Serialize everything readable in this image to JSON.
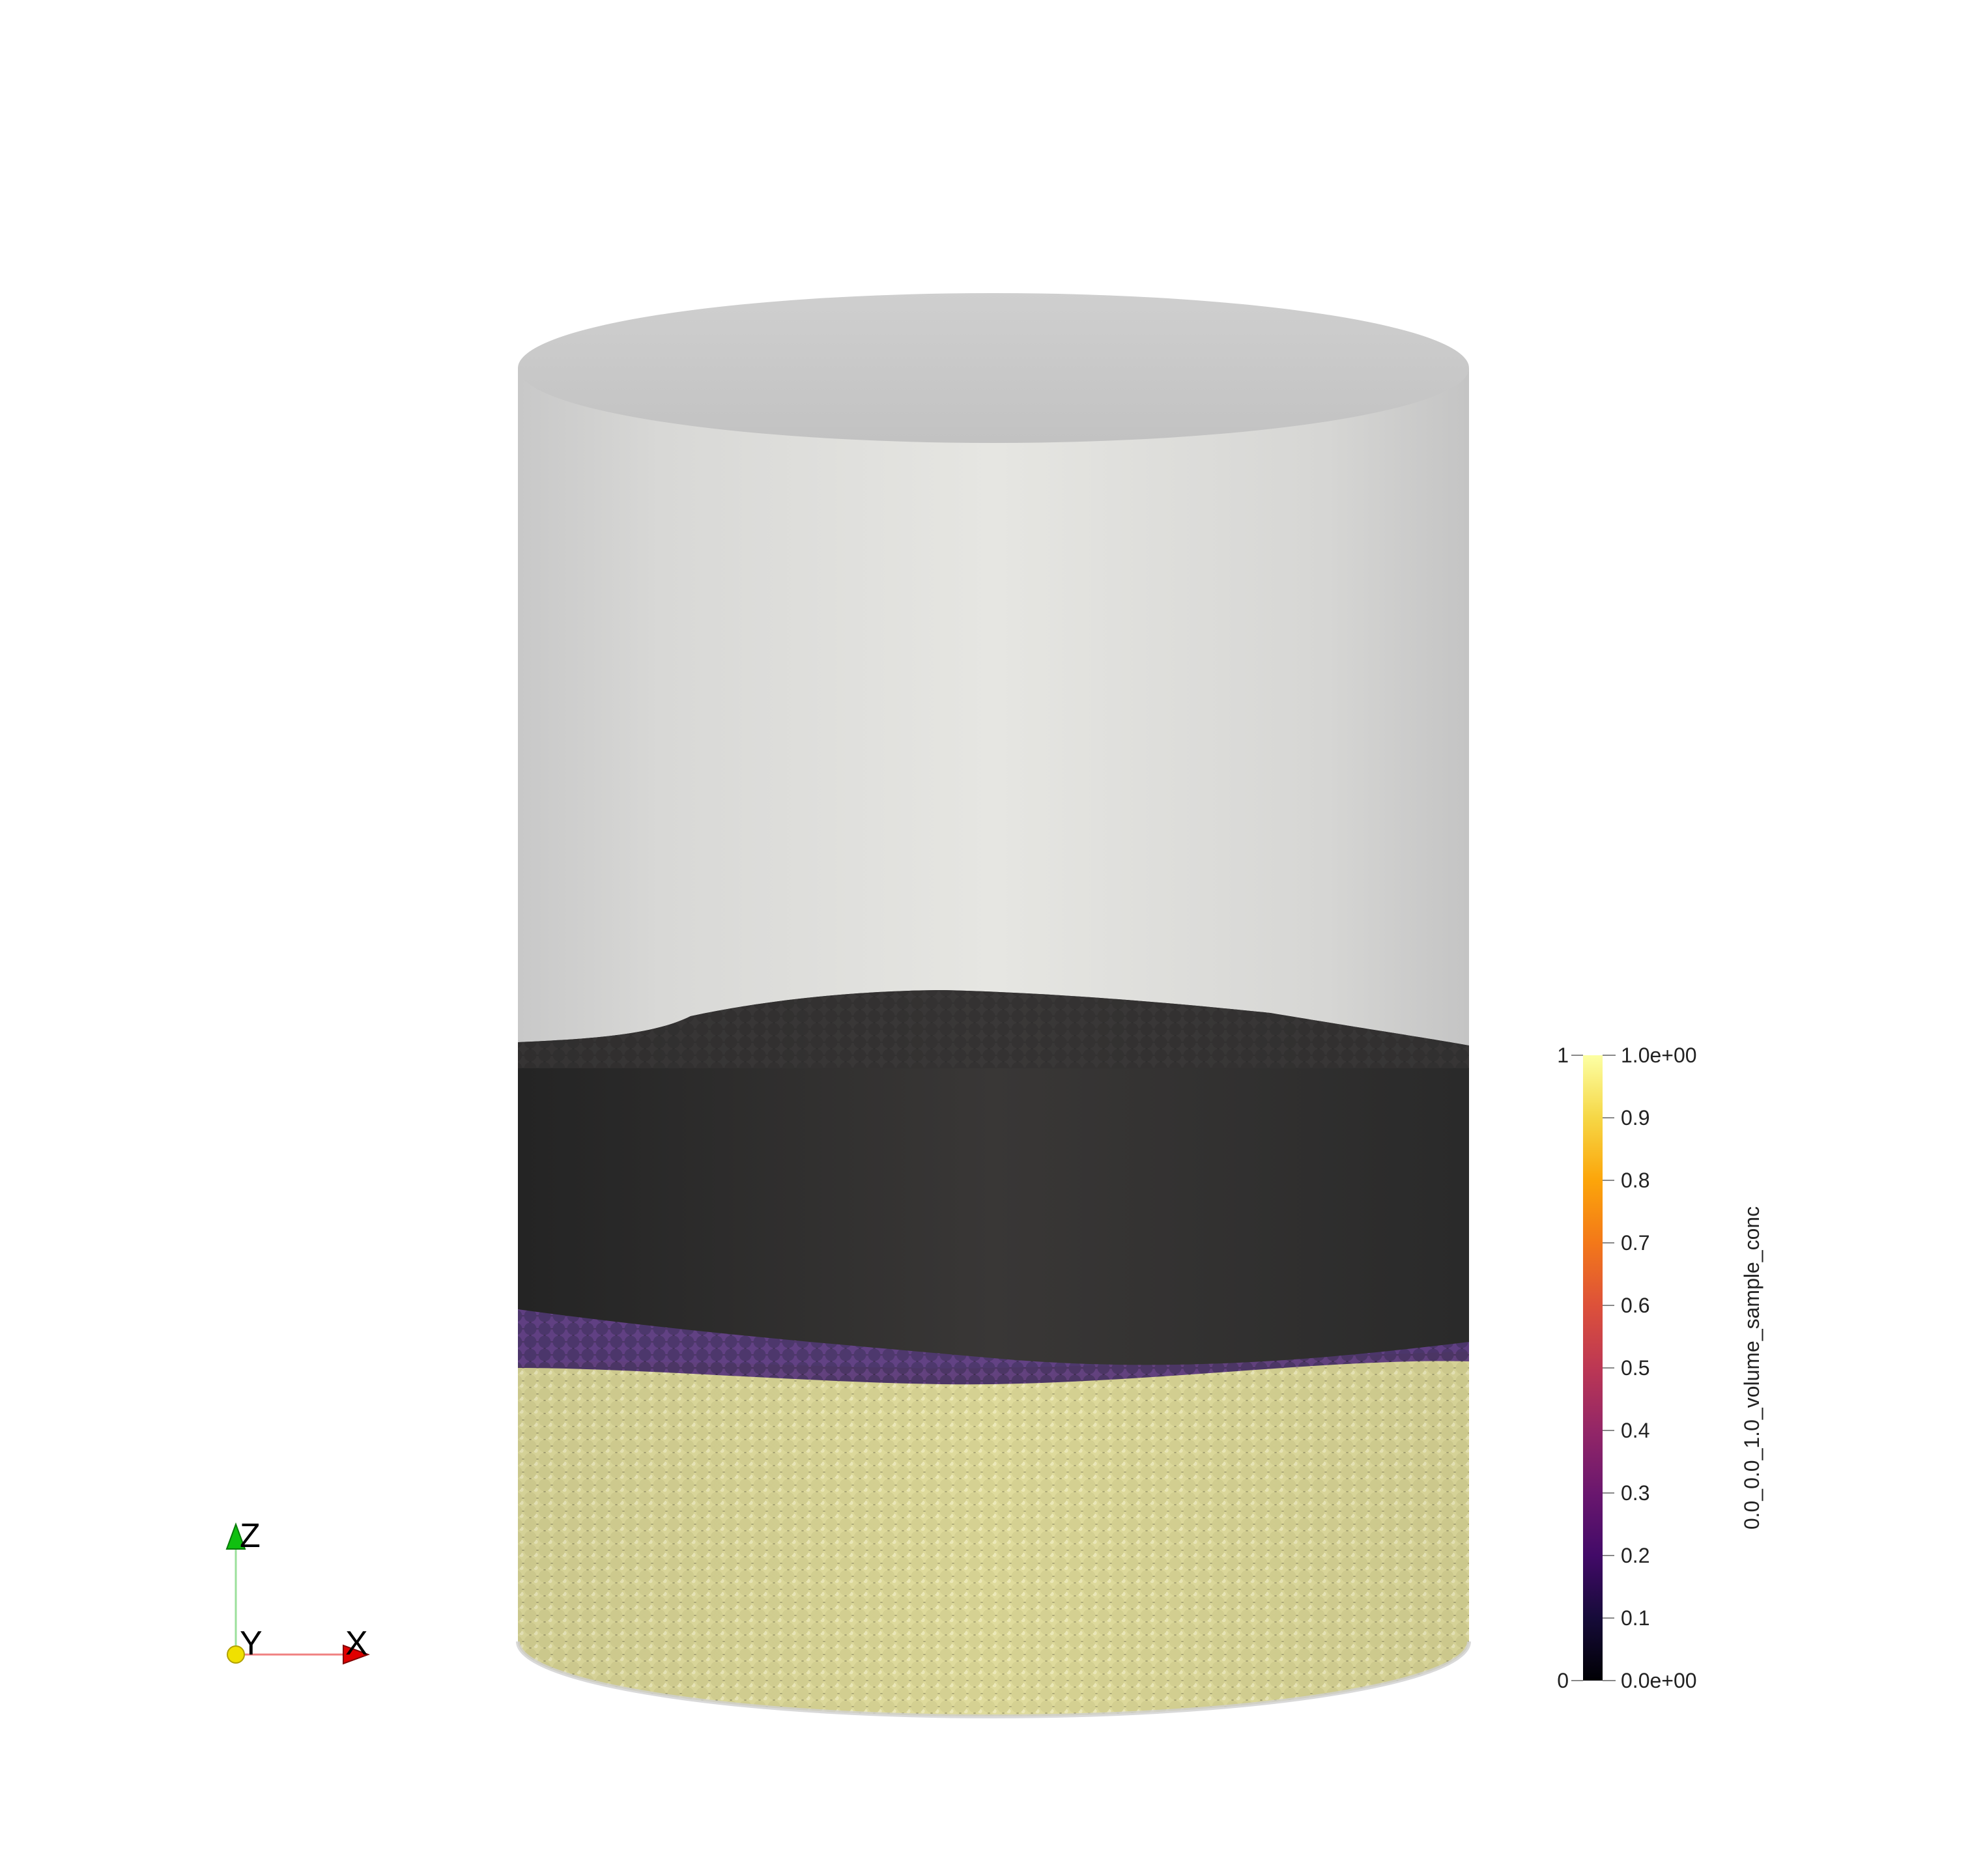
{
  "viewport": {
    "background": "#ffffff",
    "container_color": "#d9d9d9",
    "materials": {
      "top_layer_color": "#353333",
      "interface_color": "#4a2a6b",
      "bottom_layer_color": "#dcd89a"
    }
  },
  "scalar_bar": {
    "title": "0.0_0.0_1.0_volume_sample_conc",
    "range_labels": {
      "min_left": "0",
      "max_left": "1",
      "min_right": "0.0e+00",
      "max_right": "1.0e+00"
    },
    "ticks": [
      "0.1",
      "0.2",
      "0.3",
      "0.4",
      "0.5",
      "0.6",
      "0.7",
      "0.8",
      "0.9"
    ],
    "tick_values": [
      0.1,
      0.2,
      0.3,
      0.4,
      0.5,
      0.6,
      0.7,
      0.8,
      0.9
    ],
    "colormap": "inferno"
  },
  "orientation_axes": {
    "z_label": "Z",
    "y_label": "Y",
    "x_label": "X",
    "colors": {
      "x": "#e00000",
      "y": "#f0e000",
      "z": "#10c010"
    }
  }
}
